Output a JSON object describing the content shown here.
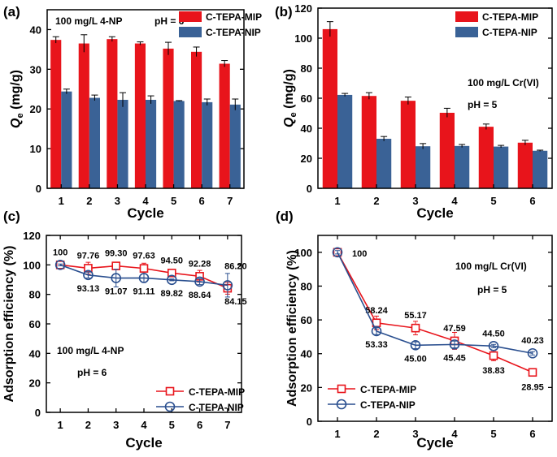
{
  "chart_data": [
    {
      "id": "a",
      "panel_label": "(a)",
      "type": "bar",
      "categories": [
        "1",
        "2",
        "3",
        "4",
        "5",
        "6",
        "7"
      ],
      "series": [
        {
          "name": "C-TEPA-MIP",
          "color": "#e8141b",
          "values": [
            37.4,
            36.5,
            37.6,
            36.5,
            35.2,
            34.4,
            31.4
          ],
          "errors": [
            0.8,
            2.2,
            0.6,
            0.4,
            1.6,
            1.2,
            0.8
          ]
        },
        {
          "name": "C-TEPA-NIP",
          "color": "#3a6296",
          "values": [
            24.4,
            22.8,
            22.3,
            22.3,
            22.0,
            21.7,
            21.1
          ],
          "errors": [
            0.6,
            0.7,
            1.8,
            1.0,
            0.1,
            0.8,
            1.4
          ]
        }
      ],
      "annotations": [
        "100 mg/L 4-NP",
        "pH = 6"
      ],
      "xlabel": "Cycle",
      "ylabel_main": "Q",
      "ylabel_sub": "e",
      "ylabel_unit": " (mg/g)",
      "ylim": [
        0,
        45
      ],
      "yticks": [
        "0",
        "10",
        "20",
        "30",
        "40"
      ],
      "legend": "top-right"
    },
    {
      "id": "b",
      "panel_label": "(b)",
      "type": "bar",
      "categories": [
        "1",
        "2",
        "3",
        "4",
        "5",
        "6"
      ],
      "series": [
        {
          "name": "C-TEPA-MIP",
          "color": "#e8141b",
          "values": [
            106,
            61.5,
            58.3,
            50.3,
            41,
            30.4
          ],
          "errors": [
            5,
            2.2,
            2.5,
            3,
            1.8,
            1.6
          ]
        },
        {
          "name": "C-TEPA-NIP",
          "color": "#3a6296",
          "values": [
            62.2,
            33,
            28,
            28.2,
            27.8,
            25
          ],
          "errors": [
            1,
            1.5,
            1.8,
            1,
            0.8,
            0.4
          ]
        }
      ],
      "annotations": [
        "100 mg/L Cr(VI)",
        "pH = 5"
      ],
      "xlabel": "Cycle",
      "ylabel_main": "Q",
      "ylabel_sub": "e",
      "ylabel_unit": " (mg/g)",
      "ylim": [
        0,
        120
      ],
      "yticks": [
        "0",
        "20",
        "40",
        "60",
        "80",
        "100",
        "120"
      ],
      "legend": "top-right"
    },
    {
      "id": "c",
      "panel_label": "(c)",
      "type": "line",
      "x": [
        1,
        2,
        3,
        4,
        5,
        6,
        7
      ],
      "xticks": [
        "1",
        "2",
        "3",
        "4",
        "5",
        "6",
        "7"
      ],
      "series": [
        {
          "name": "C-TEPA-MIP",
          "color": "#e8141b",
          "marker": "square",
          "values": [
            100,
            97.76,
            99.3,
            97.63,
            94.5,
            92.28,
            84.15
          ],
          "labels": [
            "100",
            "97.76",
            "99.30",
            "97.63",
            "94.50",
            "92.28",
            "84.15"
          ],
          "errors": [
            0.6,
            4,
            1.6,
            3.5,
            2,
            4,
            4
          ]
        },
        {
          "name": "C-TEPA-NIP",
          "color": "#2a4f8f",
          "marker": "circle",
          "values": [
            100,
            93.13,
            91.07,
            91.11,
            89.82,
            88.64,
            86.2
          ],
          "labels": [
            "",
            "93.13",
            "91.07",
            "91.11",
            "89.82",
            "88.64",
            "86.20"
          ],
          "errors": [
            0.6,
            2,
            6,
            3,
            0.6,
            2,
            8
          ]
        }
      ],
      "annotations": [
        "100 mg/L 4-NP",
        "pH = 6"
      ],
      "xlabel": "Cycle",
      "ylabel": "Adsorption efficiency (%)",
      "xlim": [
        0.5,
        7.5
      ],
      "ylim": [
        0,
        120
      ],
      "yticks": [
        "0",
        "20",
        "40",
        "60",
        "80",
        "100",
        "120"
      ],
      "legend": "bottom-right"
    },
    {
      "id": "d",
      "panel_label": "(d)",
      "type": "line",
      "x": [
        1,
        2,
        3,
        4,
        5,
        6
      ],
      "xticks": [
        "1",
        "2",
        "3",
        "4",
        "5",
        "6"
      ],
      "series": [
        {
          "name": "C-TEPA-MIP",
          "color": "#e8141b",
          "marker": "square",
          "values": [
            100,
            58.24,
            55.17,
            47.59,
            38.83,
            28.95
          ],
          "labels": [
            "100",
            "58.24",
            "55.17",
            "47.59",
            "38.83",
            "28.95"
          ],
          "errors": [
            1,
            4,
            4,
            5,
            3,
            1
          ]
        },
        {
          "name": "C-TEPA-NIP",
          "color": "#2a4f8f",
          "marker": "circle",
          "values": [
            100,
            53.33,
            45.0,
            45.45,
            44.5,
            40.23
          ],
          "labels": [
            "",
            "53.33",
            "45.00",
            "45.45",
            "44.50",
            "40.23"
          ],
          "errors": [
            1,
            2,
            2,
            2,
            1,
            1
          ]
        }
      ],
      "annotations": [
        "100 mg/L Cr(VI)",
        "pH = 5"
      ],
      "xlabel": "Cycle",
      "ylabel": "Adsorption efficiency (%)",
      "xlim": [
        0.5,
        6.5
      ],
      "ylim": [
        0,
        110
      ],
      "yticks": [
        "0",
        "20",
        "40",
        "60",
        "80",
        "100"
      ],
      "legend": "bottom-left"
    }
  ]
}
